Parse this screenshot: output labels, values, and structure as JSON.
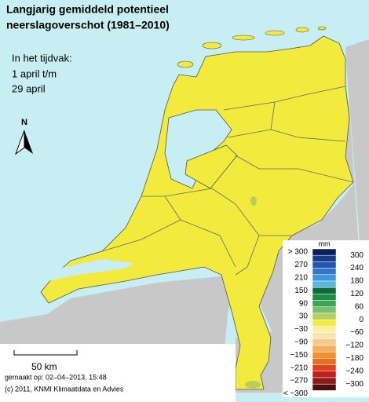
{
  "header": {
    "title_lines": [
      "Langjarig gemiddeld potentieel",
      "neerslagoverschot (1981–2010)"
    ],
    "period_lines": [
      "In het tijdvak:",
      "1 april t/m",
      "29 april"
    ]
  },
  "north": "N",
  "scale_bar": "50 km",
  "footer": [
    "gemaakt op: 02–04–2013, 15:48",
    "(c) 2011, KNMI Klimaatdata en Advies"
  ],
  "legend": {
    "unit": "mm",
    "labels_left": [
      "> 300",
      "270",
      "210",
      "150",
      "90",
      "30",
      "−30",
      "−90",
      "−150",
      "−210",
      "−270",
      "< −300"
    ],
    "labels_right": [
      "300",
      "240",
      "180",
      "120",
      "60",
      "0",
      "−60",
      "−120",
      "−180",
      "−240",
      "−300"
    ],
    "colors": [
      "#0b1f5c",
      "#1a3b8a",
      "#2255b0",
      "#2f77c8",
      "#3f97d8",
      "#5bb5e0",
      "#0d6b3a",
      "#1e8a45",
      "#3ca655",
      "#7cc06a",
      "#b7cf5e",
      "#f3eb3f",
      "#f7f0a0",
      "#fbe3b0",
      "#f8c98a",
      "#f5ad5e",
      "#f0902f",
      "#ec6b1c",
      "#e2401a",
      "#c21e1e",
      "#8f1818",
      "#4a1010"
    ]
  }
}
